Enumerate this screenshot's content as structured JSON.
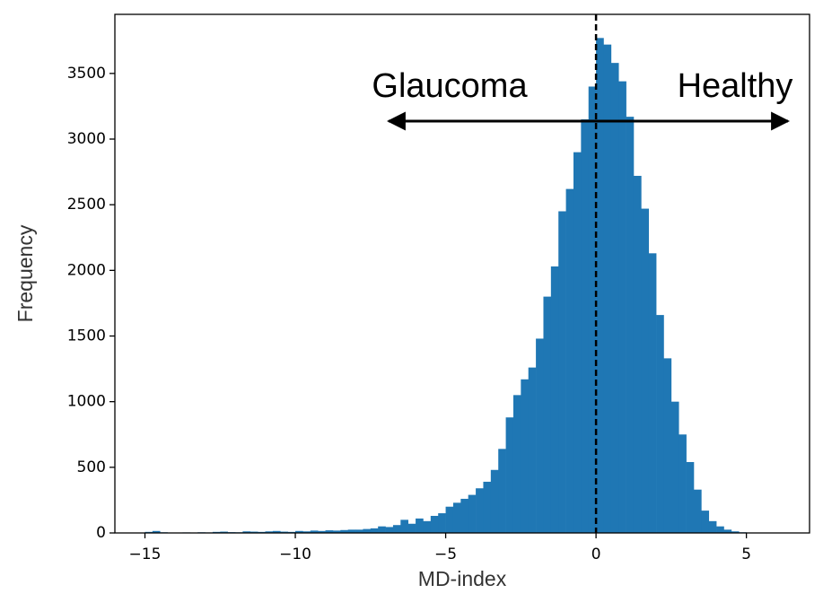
{
  "chart_data": {
    "type": "histogram",
    "xlabel": "MD-index",
    "ylabel": "Frequency",
    "annotations": [
      "Glaucoma",
      "Healthy"
    ],
    "vline": 0,
    "color": "#1f77b4",
    "bins": [
      -15,
      -14.75,
      -14.5,
      -14.25,
      -14,
      -13.75,
      -13.5,
      -13.25,
      -13,
      -12.75,
      -12.5,
      -12.25,
      -12,
      -11.75,
      -11.5,
      -11.25,
      -11,
      -10.75,
      -10.5,
      -10.25,
      -10,
      -9.75,
      -9.5,
      -9.25,
      -9,
      -8.75,
      -8.5,
      -8.25,
      -8,
      -7.75,
      -7.5,
      -7.25,
      -7,
      -6.75,
      -6.5,
      -6.25,
      -6,
      -5.75,
      -5.5,
      -5.25,
      -5,
      -4.75,
      -4.5,
      -4.25,
      -4,
      -3.75,
      -3.5,
      -3.25,
      -3,
      -2.75,
      -2.5,
      -2.25,
      -2,
      -1.75,
      -1.5,
      -1.25,
      -1,
      -0.75,
      -0.5,
      -0.25,
      0,
      0.25,
      0.5,
      0.75,
      1,
      1.25,
      1.5,
      1.75,
      2,
      2.25,
      2.5,
      2.75,
      3,
      3.25,
      3.5,
      3.75,
      4,
      4.25,
      4.5,
      4.75,
      5
    ],
    "values": [
      8,
      15,
      5,
      3,
      2,
      4,
      3,
      5,
      4,
      8,
      10,
      6,
      5,
      12,
      10,
      8,
      12,
      15,
      10,
      8,
      15,
      12,
      18,
      15,
      20,
      18,
      22,
      25,
      25,
      30,
      35,
      50,
      45,
      60,
      100,
      70,
      110,
      90,
      130,
      150,
      200,
      230,
      260,
      290,
      340,
      390,
      480,
      640,
      880,
      1050,
      1170,
      1260,
      1480,
      1800,
      2030,
      2450,
      2620,
      2900,
      3150,
      3400,
      3770,
      3720,
      3580,
      3440,
      3170,
      2720,
      2470,
      2130,
      1660,
      1330,
      1000,
      750,
      540,
      330,
      170,
      90,
      50,
      25,
      12,
      5
    ],
    "xlim": [
      -16,
      7.1
    ],
    "ylim": [
      0,
      3950
    ],
    "xticks": [
      {
        "value": -15,
        "label": "−15"
      },
      {
        "value": -10,
        "label": "−10"
      },
      {
        "value": -5,
        "label": "−5"
      },
      0,
      5
    ],
    "yticks": [
      0,
      500,
      1000,
      1500,
      2000,
      2500,
      3000,
      3500
    ]
  }
}
